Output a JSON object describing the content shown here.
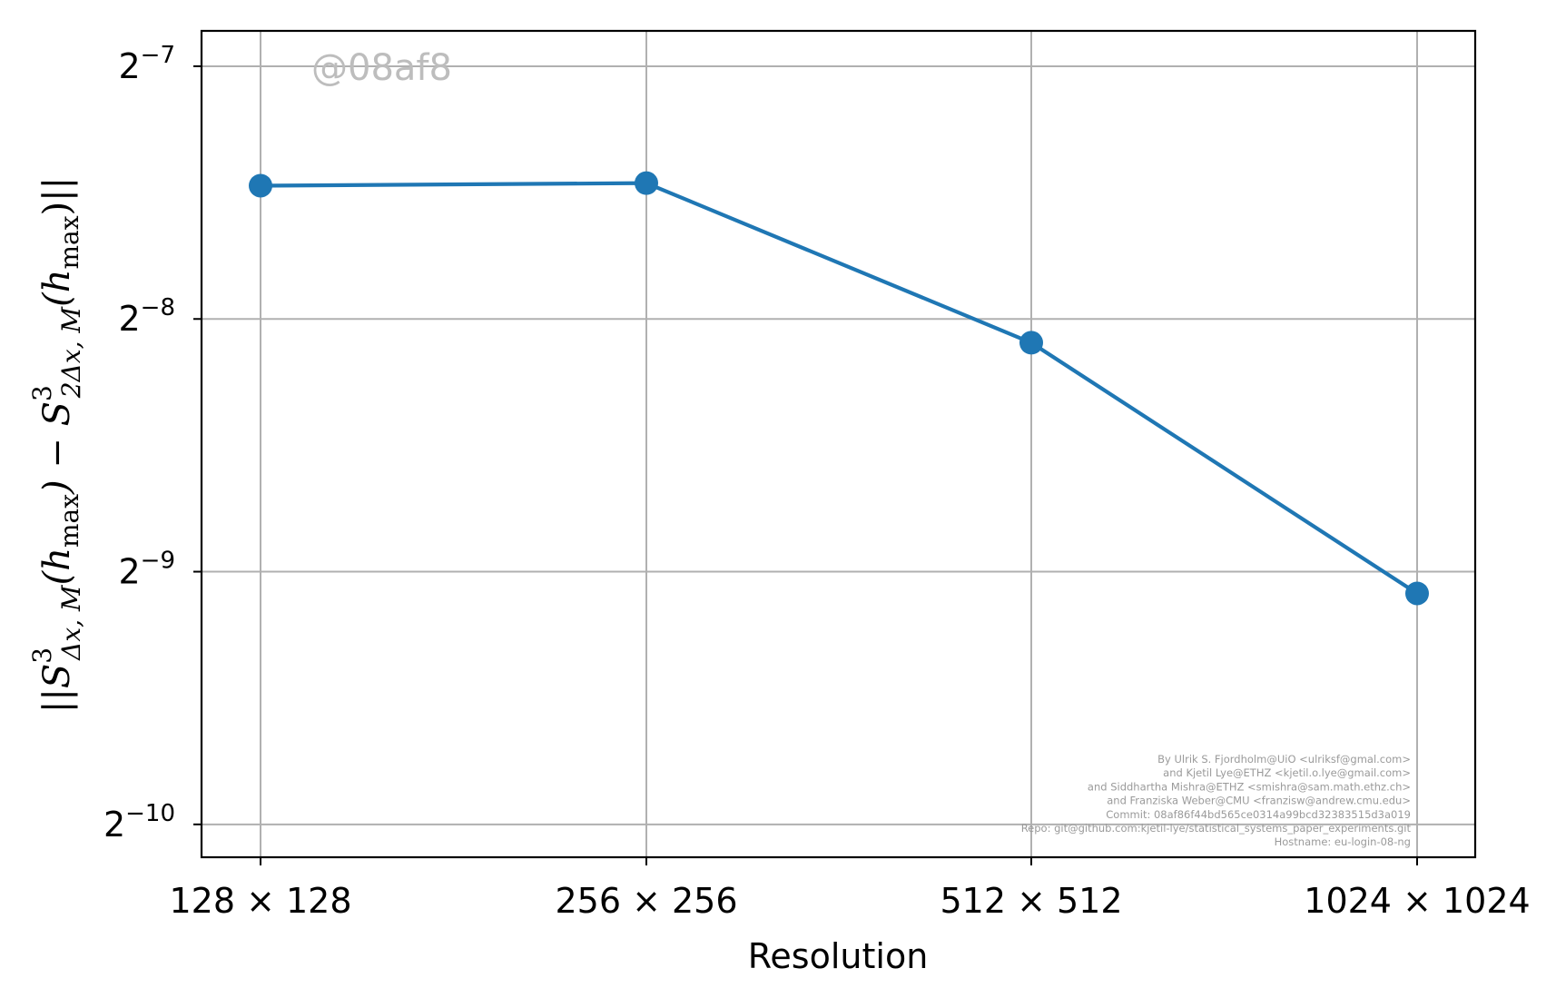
{
  "chart_data": {
    "type": "line",
    "xlabel": "Resolution",
    "ylabel": "||S³Δx,M(hmax) − S³2Δx,M(hmax)||",
    "categories": [
      "128 × 128",
      "256 × 256",
      "512 × 512",
      "1024 × 1024"
    ],
    "yscale": "log2",
    "ylim_exponent": [
      -10.13,
      -6.86
    ],
    "yticks": [
      {
        "exp": -7,
        "base": "2",
        "sup": "−7"
      },
      {
        "exp": -8,
        "base": "2",
        "sup": "−8"
      },
      {
        "exp": -9,
        "base": "2",
        "sup": "−9"
      },
      {
        "exp": -10,
        "base": "2",
        "sup": "−10"
      }
    ],
    "series": [
      {
        "color": "#1f77b4",
        "values": [
          0.00563,
          0.00567,
          0.00366,
          0.00184
        ]
      }
    ],
    "grid": true,
    "watermark": "@08af8",
    "credits": [
      "By Ulrik S. Fjordholm@UiO <ulriksf@gmal.com>",
      "and Kjetil Lye@ETHZ <kjetil.o.lye@gmail.com>",
      "and Siddhartha Mishra@ETHZ <smishra@sam.math.ethz.ch>",
      "and Franziska Weber@CMU <franzisw@andrew.cmu.edu>",
      "Commit: 08af86f44bd565ce0314a99bcd32383515d3a019",
      "Repo: git@github.com:kjetil-lye/statistical_systems_paper_experiments.git",
      "Hostname: eu-login-08-ng"
    ],
    "ylabel_parts": {
      "open": "||S",
      "sup1": "3",
      "sub1": "Δx, M",
      "mid": "(h",
      "sub2": "max",
      "mid2": ") − S",
      "sup3": "3",
      "sub3": "2Δx, M",
      "mid3": "(h",
      "sub4": "max",
      "close": ")||"
    }
  }
}
